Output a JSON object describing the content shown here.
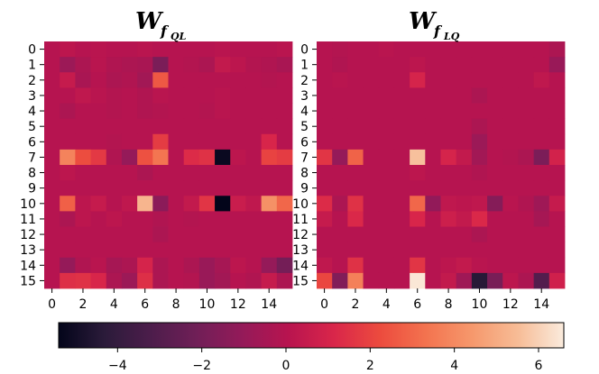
{
  "chart_data": [
    {
      "type": "heatmap",
      "title": {
        "main": "W",
        "sub": "f",
        "subsub": "QL"
      },
      "x_ticks": [
        "0",
        "2",
        "4",
        "6",
        "8",
        "10",
        "12",
        "14"
      ],
      "y_ticks": [
        "0",
        "1",
        "2",
        "3",
        "4",
        "5",
        "6",
        "7",
        "8",
        "9",
        "10",
        "11",
        "12",
        "13",
        "14",
        "15"
      ],
      "rows": 16,
      "cols": 16,
      "grid": false,
      "values": [
        [
          0.0,
          0.2,
          0.0,
          0.1,
          0.0,
          0.0,
          0.1,
          0.0,
          0.0,
          0.0,
          0.0,
          0.1,
          0.0,
          0.0,
          0.0,
          0.1
        ],
        [
          0.0,
          -0.8,
          -0.3,
          0.1,
          -0.2,
          -0.3,
          -0.4,
          -1.8,
          0.0,
          -0.1,
          -0.3,
          0.4,
          0.2,
          -0.1,
          -0.2,
          -0.4
        ],
        [
          0.0,
          0.5,
          -0.4,
          0.0,
          -0.3,
          -0.2,
          -0.6,
          2.6,
          0.0,
          0.0,
          0.0,
          0.0,
          0.0,
          0.0,
          -0.1,
          0.0
        ],
        [
          0.0,
          0.0,
          0.3,
          0.1,
          -0.1,
          0.0,
          -0.2,
          0.1,
          0.0,
          0.0,
          0.0,
          0.1,
          0.0,
          0.0,
          0.0,
          0.0
        ],
        [
          0.0,
          -0.3,
          0.0,
          0.0,
          -0.1,
          0.0,
          -0.2,
          -0.1,
          0.0,
          0.0,
          -0.1,
          0.1,
          0.0,
          0.0,
          0.0,
          0.0
        ],
        [
          0.0,
          0.0,
          0.0,
          0.0,
          0.0,
          0.0,
          0.0,
          0.0,
          0.0,
          0.0,
          0.0,
          0.0,
          0.0,
          0.0,
          0.0,
          0.0
        ],
        [
          0.0,
          0.0,
          0.0,
          0.0,
          -0.1,
          0.0,
          0.0,
          1.8,
          0.0,
          0.0,
          0.0,
          0.0,
          0.0,
          0.0,
          1.1,
          0.0
        ],
        [
          0.0,
          3.8,
          2.3,
          1.7,
          -0.2,
          -1.0,
          2.4,
          3.4,
          0.0,
          1.3,
          1.5,
          -5.2,
          0.2,
          0.0,
          2.0,
          1.8
        ],
        [
          0.0,
          0.2,
          0.0,
          0.0,
          0.0,
          0.0,
          -0.3,
          0.0,
          0.0,
          0.0,
          0.0,
          0.0,
          0.0,
          0.0,
          0.0,
          0.0
        ],
        [
          0.0,
          0.0,
          0.0,
          0.0,
          0.0,
          0.0,
          0.0,
          0.0,
          0.0,
          0.0,
          0.0,
          0.0,
          0.0,
          0.0,
          0.0,
          0.0
        ],
        [
          0.0,
          2.8,
          0.2,
          0.5,
          0.0,
          0.3,
          5.3,
          -1.3,
          0.0,
          0.4,
          1.6,
          -5.4,
          0.6,
          0.3,
          4.2,
          3.0
        ],
        [
          0.0,
          -0.3,
          0.2,
          0.0,
          0.2,
          0.0,
          0.0,
          -0.2,
          0.0,
          -0.1,
          0.0,
          0.0,
          0.0,
          0.0,
          0.0,
          0.0
        ],
        [
          0.0,
          0.0,
          0.0,
          0.0,
          0.0,
          0.0,
          0.0,
          -0.3,
          0.0,
          0.0,
          0.0,
          0.0,
          0.0,
          0.0,
          0.0,
          0.0
        ],
        [
          0.0,
          0.0,
          0.0,
          0.0,
          0.0,
          0.0,
          0.0,
          0.0,
          0.0,
          0.0,
          0.0,
          0.0,
          0.0,
          0.0,
          0.0,
          0.0
        ],
        [
          0.0,
          -1.0,
          -0.2,
          0.1,
          -0.5,
          -0.3,
          1.0,
          -0.3,
          0.0,
          -0.3,
          -0.9,
          -0.5,
          0.2,
          0.0,
          -1.0,
          -2.0
        ],
        [
          0.0,
          1.4,
          1.5,
          1.1,
          -0.3,
          -0.8,
          1.4,
          -0.3,
          0.0,
          -0.1,
          -0.9,
          -0.6,
          0.0,
          -0.2,
          0.5,
          -0.3
        ]
      ]
    },
    {
      "type": "heatmap",
      "title": {
        "main": "W",
        "sub": "f",
        "subsub": "LQ"
      },
      "x_ticks": [
        "0",
        "2",
        "4",
        "6",
        "8",
        "10",
        "12",
        "14"
      ],
      "y_ticks": [
        "0",
        "1",
        "2",
        "3",
        "4",
        "5",
        "6",
        "7",
        "8",
        "9",
        "10",
        "11",
        "12",
        "13",
        "14",
        "15"
      ],
      "rows": 16,
      "cols": 16,
      "grid": false,
      "values": [
        [
          0.0,
          -0.1,
          0.0,
          0.0,
          0.1,
          0.0,
          0.0,
          0.0,
          0.0,
          0.0,
          0.0,
          0.0,
          0.0,
          0.0,
          0.0,
          -0.3
        ],
        [
          0.0,
          -0.2,
          0.0,
          0.0,
          0.0,
          0.0,
          0.2,
          0.0,
          0.0,
          0.0,
          0.0,
          0.0,
          0.0,
          0.0,
          0.0,
          -0.9
        ],
        [
          0.0,
          0.1,
          0.0,
          0.0,
          0.0,
          0.0,
          1.0,
          0.0,
          0.0,
          0.0,
          0.0,
          0.0,
          0.0,
          0.0,
          0.3,
          0.0
        ],
        [
          0.0,
          0.0,
          0.0,
          0.0,
          0.0,
          0.0,
          0.0,
          0.0,
          0.0,
          0.0,
          -0.3,
          0.0,
          0.0,
          0.0,
          0.0,
          0.0
        ],
        [
          0.0,
          0.0,
          0.0,
          0.0,
          0.0,
          0.0,
          0.0,
          0.0,
          0.0,
          0.0,
          0.0,
          0.0,
          0.0,
          0.0,
          0.0,
          0.0
        ],
        [
          0.0,
          0.0,
          0.0,
          0.0,
          0.0,
          0.0,
          0.0,
          0.0,
          0.0,
          0.0,
          -0.3,
          0.0,
          0.0,
          0.0,
          0.0,
          0.0
        ],
        [
          0.0,
          0.0,
          0.0,
          0.0,
          0.0,
          0.0,
          0.0,
          0.0,
          0.0,
          0.0,
          -0.8,
          0.0,
          0.0,
          0.0,
          0.0,
          0.0
        ],
        [
          1.6,
          -1.0,
          2.9,
          0.0,
          0.0,
          0.0,
          5.6,
          0.0,
          1.0,
          0.4,
          -0.6,
          0.0,
          -0.1,
          -0.3,
          -1.8,
          0.9
        ],
        [
          0.0,
          0.0,
          0.0,
          0.0,
          0.0,
          0.0,
          0.2,
          0.0,
          0.0,
          0.0,
          -0.2,
          0.0,
          0.0,
          0.0,
          0.0,
          0.0
        ],
        [
          0.0,
          0.0,
          0.0,
          0.0,
          0.0,
          0.0,
          0.0,
          0.0,
          0.0,
          0.0,
          0.0,
          0.0,
          0.0,
          0.0,
          0.0,
          0.0
        ],
        [
          1.3,
          -0.3,
          1.5,
          0.0,
          0.0,
          0.0,
          3.0,
          -1.1,
          0.3,
          0.2,
          0.3,
          -1.5,
          0.1,
          -0.2,
          -0.7,
          0.5
        ],
        [
          0.5,
          0.0,
          1.2,
          0.0,
          0.0,
          0.0,
          1.1,
          0.0,
          0.7,
          0.4,
          1.2,
          0.0,
          0.0,
          0.0,
          -0.5,
          0.0
        ],
        [
          0.0,
          0.0,
          0.0,
          0.0,
          0.0,
          0.0,
          0.0,
          0.0,
          0.0,
          0.0,
          -0.3,
          0.0,
          0.0,
          0.0,
          0.0,
          0.0
        ],
        [
          0.0,
          0.0,
          0.0,
          0.0,
          0.0,
          0.0,
          0.0,
          0.0,
          0.0,
          0.0,
          0.0,
          0.0,
          0.0,
          0.0,
          0.0,
          0.0
        ],
        [
          0.3,
          0.0,
          1.5,
          0.0,
          0.0,
          0.0,
          1.6,
          0.0,
          0.2,
          0.4,
          0.1,
          0.0,
          0.0,
          0.0,
          0.0,
          0.0
        ],
        [
          2.1,
          -1.6,
          3.7,
          0.0,
          0.0,
          0.0,
          6.5,
          0.0,
          0.4,
          -0.7,
          -4.4,
          -1.9,
          0.2,
          -0.3,
          -3.0,
          0.8
        ]
      ]
    }
  ],
  "colorbar": {
    "vmin": -5.4,
    "vmax": 6.6,
    "ticks": [
      -4,
      -2,
      0,
      2,
      4,
      6
    ],
    "tick_labels": [
      "−4",
      "−2",
      "0",
      "2",
      "4",
      "6"
    ]
  },
  "colormap": {
    "name": "rocket",
    "stops": [
      "#03051a",
      "#2b1b3a",
      "#4c1d4b",
      "#701f57",
      "#941a59",
      "#b8144f",
      "#d9264a",
      "#ec4b3e",
      "#f3734f",
      "#f6986c",
      "#f7bc96",
      "#faebdd"
    ]
  }
}
